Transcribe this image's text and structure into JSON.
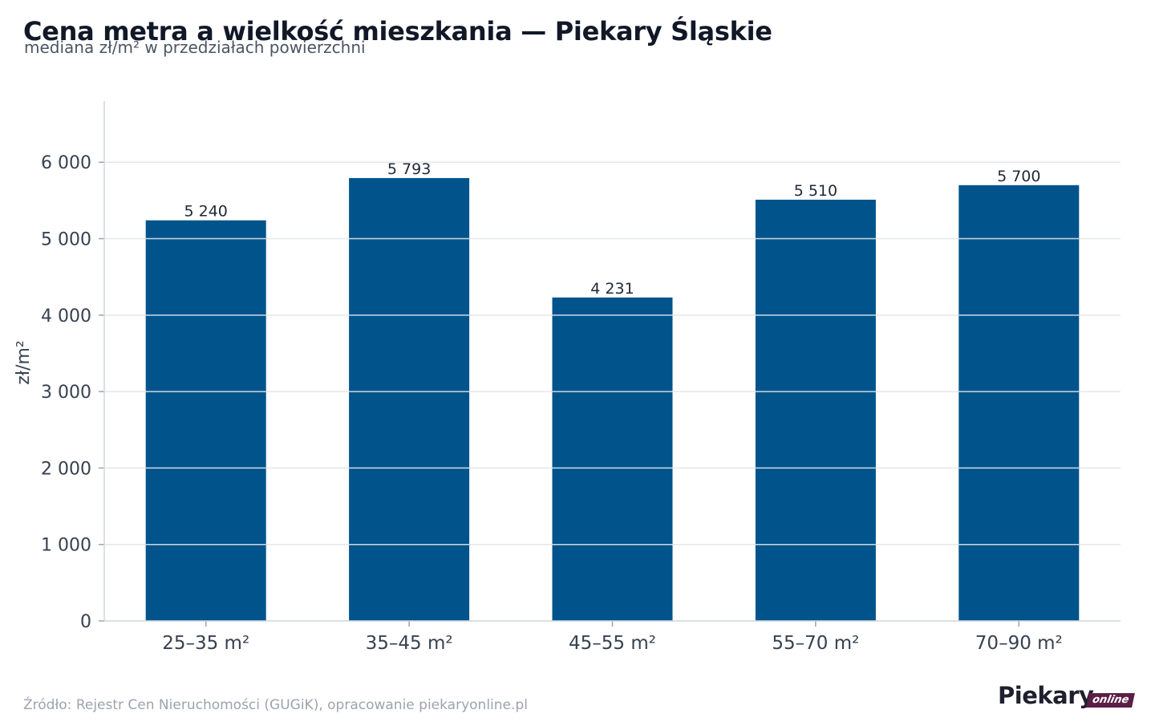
{
  "chart_data": {
    "type": "bar",
    "title": "Cena metra a wielkość mieszkania — Piekary Śląskie",
    "subtitle": "mediana zł/m² w przedziałach powierzchni",
    "ylabel": "zł/m²",
    "xlabel": "",
    "categories": [
      "25–35 m²",
      "35–45 m²",
      "45–55 m²",
      "55–70 m²",
      "70–90 m²"
    ],
    "values": [
      5240,
      5793,
      4231,
      5510,
      5700
    ],
    "value_labels": [
      "5 240",
      "5 793",
      "4 231",
      "5 510",
      "5 700"
    ],
    "yticks": [
      0,
      1000,
      2000,
      3000,
      4000,
      5000,
      6000
    ],
    "ytick_labels": [
      "0",
      "1 000",
      "2 000",
      "3 000",
      "4 000",
      "5 000",
      "6 000"
    ],
    "ylim": [
      0,
      6800
    ],
    "grid": true,
    "bar_color": "#00548b"
  },
  "source": "Źródło: Rejestr Cen Nieruchomości (GUGiK), opracowanie piekaryonline.pl",
  "logo": {
    "main": "Piekary",
    "tag": "online"
  }
}
